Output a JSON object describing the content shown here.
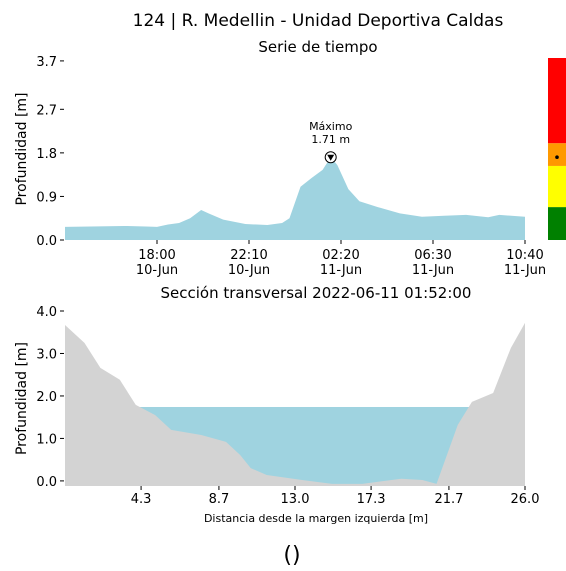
{
  "title": "124 | R. Medellin - Unidad Deportiva Caldas",
  "caption": "()",
  "chart_data": [
    {
      "type": "area",
      "title": "Serie de tiempo",
      "y_label": "Profundidad [m]",
      "color": "#9fd3e0",
      "x": [
        "10-Jun 13:50",
        "10-Jun 15:00",
        "10-Jun 16:30",
        "10-Jun 17:30",
        "10-Jun 18:00",
        "10-Jun 18:30",
        "10-Jun 19:00",
        "10-Jun 19:30",
        "10-Jun 20:00",
        "10-Jun 20:20",
        "10-Jun 21:00",
        "10-Jun 22:00",
        "10-Jun 23:00",
        "10-Jun 23:40",
        "11-Jun 00:00",
        "11-Jun 00:30",
        "11-Jun 01:00",
        "11-Jun 01:30",
        "11-Jun 01:52",
        "11-Jun 02:10",
        "11-Jun 02:40",
        "11-Jun 03:10",
        "11-Jun 04:00",
        "11-Jun 05:00",
        "11-Jun 06:00",
        "11-Jun 07:00",
        "11-Jun 08:00",
        "11-Jun 09:00",
        "11-Jun 09:30",
        "11-Jun 10:40"
      ],
      "values": [
        0.27,
        0.28,
        0.29,
        0.28,
        0.27,
        0.32,
        0.35,
        0.45,
        0.62,
        0.55,
        0.42,
        0.33,
        0.31,
        0.35,
        0.45,
        1.1,
        1.28,
        1.45,
        1.71,
        1.55,
        1.05,
        0.8,
        0.68,
        0.55,
        0.48,
        0.5,
        0.52,
        0.47,
        0.52,
        0.48
      ],
      "xlim": [
        "10-Jun 13:50",
        "11-Jun 10:40"
      ],
      "xticks": [
        {
          "value": "10-Jun 18:00",
          "label": "18:00\n10-Jun"
        },
        {
          "value": "10-Jun 22:10",
          "label": "22:10\n10-Jun"
        },
        {
          "value": "11-Jun 02:20",
          "label": "02:20\n11-Jun"
        },
        {
          "value": "11-Jun 06:30",
          "label": "06:30\n11-Jun"
        },
        {
          "value": "11-Jun 10:40",
          "label": "10:40\n11-Jun"
        }
      ],
      "ylim": [
        0,
        3.76
      ],
      "yticks": [
        {
          "value": 0,
          "label": "0.0"
        },
        0.9,
        1.8,
        2.7,
        3.7
      ],
      "annotation": {
        "label": "Máximo",
        "text": "1.71 m",
        "x": "11-Jun 01:52",
        "y": 1.71
      },
      "levels": [
        {
          "color": "#008000",
          "range": [
            0,
            0.68
          ]
        },
        {
          "color": "#ffff00",
          "range": [
            0.68,
            1.53
          ]
        },
        {
          "color": "#ff9900",
          "range": [
            1.53,
            2.0
          ]
        },
        {
          "color": "#ff0000",
          "range": [
            2.0,
            3.76
          ]
        }
      ],
      "marker": 1.71
    },
    {
      "type": "cross_section",
      "title": "Sección transversal 2022-06-11 01:52:00",
      "x_label": "Distancia desde la margen izquierda [m]",
      "y_label": "Profundidad [m]",
      "color": "#d3d3d3",
      "water_color": "#9fd3e0",
      "x": [
        0,
        1.1,
        2.0,
        3.1,
        4.0,
        5.1,
        6.0,
        7.7,
        9.1,
        9.9,
        10.5,
        11.4,
        13.4,
        15.1,
        16.8,
        19.0,
        20.2,
        21.0,
        22.2,
        23.0,
        24.2,
        25.2,
        26.0
      ],
      "values": [
        3.67,
        3.25,
        2.66,
        2.38,
        1.79,
        1.55,
        1.2,
        1.08,
        0.92,
        0.61,
        0.3,
        0.14,
        0.02,
        -0.07,
        -0.07,
        0.05,
        0.02,
        -0.07,
        1.32,
        1.86,
        2.07,
        3.13,
        3.72
      ],
      "water_level": 1.74,
      "xlim": [
        0,
        26
      ],
      "xticks": [
        4.3,
        8.7,
        {
          "value": 13,
          "label": "13.0"
        },
        17.3,
        21.7,
        {
          "value": 26,
          "label": "26.0"
        }
      ],
      "ylim": [
        -0.12,
        4.0
      ],
      "yticks": [
        {
          "value": 0,
          "label": "0.0"
        },
        {
          "value": 1,
          "label": "1.0"
        },
        {
          "value": 2,
          "label": "2.0"
        },
        {
          "value": 3,
          "label": "3.0"
        },
        {
          "value": 4,
          "label": "4.0"
        }
      ]
    }
  ]
}
